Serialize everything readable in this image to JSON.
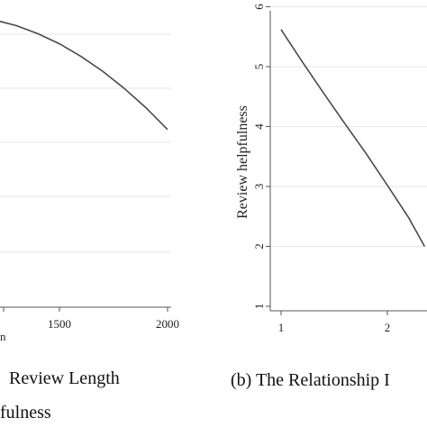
{
  "chart_data": [
    {
      "type": "line",
      "title": "",
      "xlabel": "",
      "ylabel": "",
      "x_ticks": [
        "1500",
        "2000"
      ],
      "xlim": [
        1000,
        2000
      ],
      "ylim": [
        0,
        6
      ],
      "grid": true,
      "series": [
        {
          "x": [
            1000,
            1100,
            1200,
            1300,
            1400,
            1500,
            1600,
            1700,
            1800,
            1900,
            2000
          ],
          "values": [
            5.75,
            5.73,
            5.66,
            5.55,
            5.39,
            5.19,
            4.94,
            4.65,
            4.31,
            3.93,
            3.5
          ]
        }
      ],
      "axis_fragment": "n",
      "caption_line1": "Review Length",
      "caption_line2": "fulness"
    },
    {
      "type": "line",
      "title": "",
      "xlabel": "",
      "ylabel": "Review helpfulness",
      "x_ticks": [
        "1",
        "2"
      ],
      "y_ticks": [
        "1",
        "2",
        "3",
        "4",
        "5",
        "6"
      ],
      "xlim": [
        1,
        2.5
      ],
      "ylim": [
        1,
        6
      ],
      "grid": true,
      "series": [
        {
          "x": [
            1,
            1.2,
            1.4,
            1.6,
            1.8,
            2,
            2.2,
            2.35
          ],
          "values": [
            5.62,
            5.08,
            4.56,
            4.05,
            3.55,
            3.02,
            2.48,
            2.0
          ]
        }
      ],
      "caption": "(b) The Relationship I"
    }
  ],
  "style": {
    "line_color": "#4a4a4a",
    "grid_color": "#e6e6e6",
    "axis_color": "#555555"
  }
}
